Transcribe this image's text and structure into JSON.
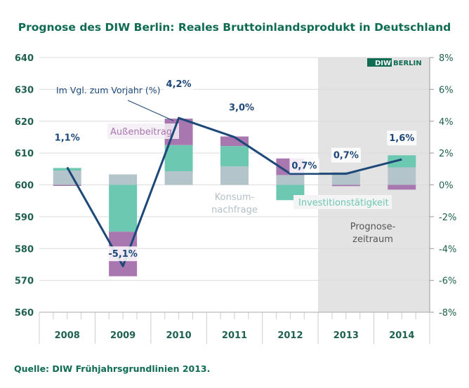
{
  "chart_data": {
    "type": "bar",
    "title": "Prognose des DIW Berlin: Reales Bruttoinlandsprodukt in Deutschland",
    "categories": [
      "2008",
      "2009",
      "2010",
      "2011",
      "2012",
      "2013",
      "2014"
    ],
    "left_axis": {
      "ylim": [
        560,
        640
      ],
      "ticks": [
        "560",
        "570",
        "580",
        "590",
        "600",
        "610",
        "620",
        "630",
        "640"
      ]
    },
    "right_axis": {
      "ylim": [
        -8,
        8
      ],
      "ticks": [
        "-8%",
        "-6%",
        "-4%",
        "-2%",
        "0%",
        "2%",
        "4%",
        "6%",
        "8%"
      ]
    },
    "grid": true,
    "stacked_series": [
      {
        "name": "Konsumnachfrage",
        "color": "#b4c4cb",
        "segments": [
          [
            600,
            604.5
          ],
          [
            600,
            603.3
          ],
          [
            600,
            604.3
          ],
          [
            600,
            605.8
          ],
          [
            600,
            603.1
          ],
          [
            600,
            604
          ],
          [
            600,
            605.5
          ]
        ]
      },
      {
        "name": "Investitionstätigkeit",
        "color": "#6cc8b1",
        "segments": [
          [
            604.5,
            605.3
          ],
          [
            585.3,
            600
          ],
          [
            604.3,
            612.5
          ],
          [
            605.8,
            612.2
          ],
          [
            595.2,
            600
          ],
          [
            600,
            600
          ],
          [
            605.5,
            609.3
          ]
        ]
      },
      {
        "name": "Außenbeitrag",
        "color": "#a977b0",
        "segments": [
          [
            599.8,
            600
          ],
          [
            571.3,
            585.3
          ],
          [
            612.5,
            620.8
          ],
          [
            612.2,
            615.2
          ],
          [
            603.1,
            608.3
          ],
          [
            599.6,
            600
          ],
          [
            598.5,
            600
          ]
        ]
      }
    ],
    "line_series": {
      "name": "Im Vgl. zum Vorjahr (%)",
      "color": "#1d4878",
      "values": [
        1.1,
        -5.1,
        4.2,
        3.0,
        0.7,
        0.7,
        1.6
      ],
      "labels": [
        "1,1%",
        "-5,1%",
        "4,2%",
        "3,0%",
        "0,7%",
        "0,7%",
        "1,6%"
      ]
    },
    "forecast_region": {
      "label_line1": "Prognose-",
      "label_line2": "zeitraum",
      "from": "2013",
      "to": "2014"
    },
    "series_labels": {
      "konsum_line1": "Konsum-",
      "konsum_line2": "nachfrage",
      "invest": "Investitionstätigkeit",
      "aussen": "Außenbeitrag"
    }
  },
  "logo": {
    "text": "DIW BERLIN",
    "brand": "#0f6b52"
  },
  "source": "Quelle: DIW Frühjahrsgrundlinien 2013."
}
